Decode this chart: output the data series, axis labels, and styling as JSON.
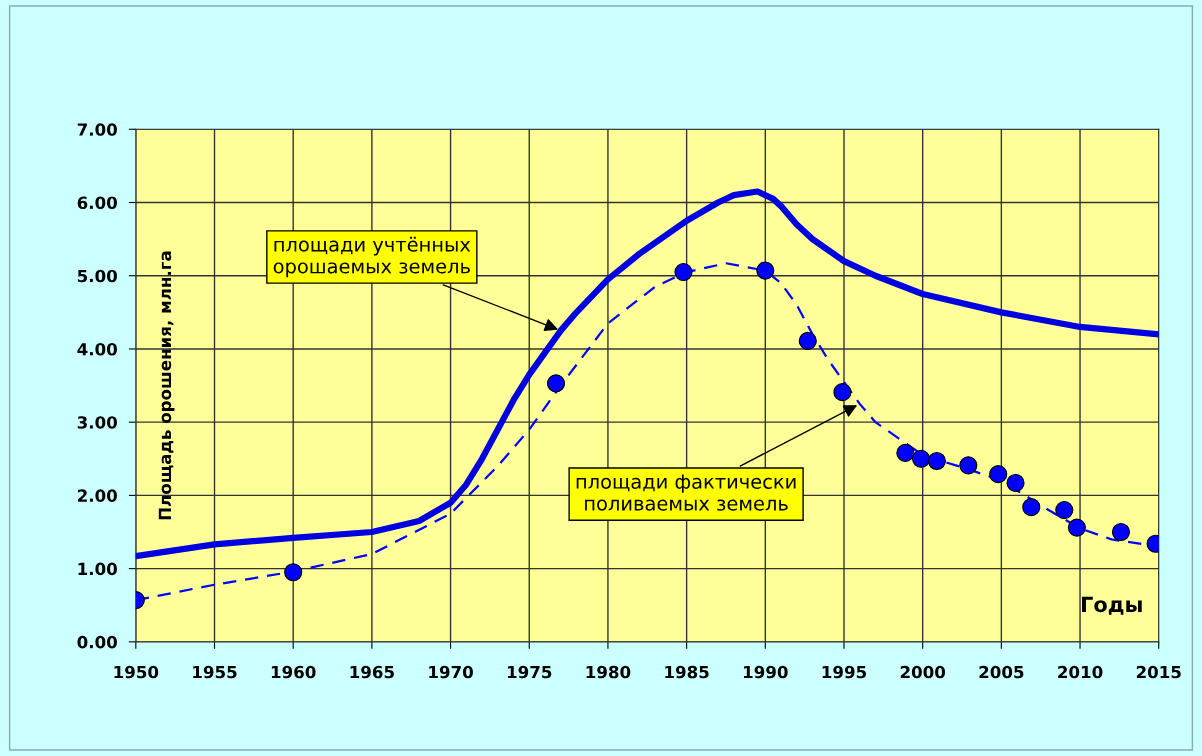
{
  "chart_data": {
    "type": "line",
    "xlabel": "Годы",
    "ylabel": "Площадь орошения, млн.га",
    "xlim": [
      1950,
      2015
    ],
    "xticks": [
      1950,
      1955,
      1960,
      1965,
      1970,
      1975,
      1980,
      1985,
      1990,
      1995,
      2000,
      2005,
      2010,
      2015
    ],
    "ylim": [
      0,
      7
    ],
    "yticks": [
      {
        "value": 0,
        "label": "0.00"
      },
      {
        "value": 1,
        "label": "1.00"
      },
      {
        "value": 2,
        "label": "2.00"
      },
      {
        "value": 3,
        "label": "3.00"
      },
      {
        "value": 4,
        "label": "4.00"
      },
      {
        "value": 5,
        "label": "5.00"
      },
      {
        "value": 6,
        "label": "6.00"
      },
      {
        "value": 7,
        "label": "7.00"
      }
    ],
    "grid": true,
    "legend": false,
    "series": [
      {
        "type": "line",
        "color": "#0000e0",
        "line_style": "solid",
        "marker": "none",
        "x": [
          1950,
          1955,
          1960,
          1965,
          1968,
          1970,
          1971,
          1972,
          1973,
          1974,
          1975,
          1976,
          1977,
          1978,
          1980,
          1982,
          1985,
          1987,
          1988,
          1989.5,
          1990.5,
          1991,
          1992,
          1993,
          1994,
          1995,
          1997,
          2000,
          2005,
          2010,
          2015
        ],
        "values": [
          1.17,
          1.33,
          1.42,
          1.5,
          1.65,
          1.9,
          2.15,
          2.5,
          2.9,
          3.3,
          3.65,
          3.95,
          4.25,
          4.5,
          4.95,
          5.3,
          5.75,
          6.0,
          6.1,
          6.15,
          6.05,
          5.95,
          5.7,
          5.5,
          5.35,
          5.2,
          5.0,
          4.75,
          4.5,
          4.3,
          4.2
        ]
      },
      {
        "type": "line",
        "color": "#0000ff",
        "line_style": "dashed",
        "marker": "none",
        "x": [
          1950,
          1955,
          1960,
          1965,
          1970,
          1973,
          1975,
          1977,
          1980,
          1983,
          1985,
          1987.5,
          1990,
          1991,
          1992,
          1993,
          1994,
          1995,
          1996,
          1997,
          2000,
          2003,
          2005,
          2008,
          2010,
          2012,
          2015
        ],
        "values": [
          0.57,
          0.78,
          0.96,
          1.2,
          1.75,
          2.4,
          2.9,
          3.5,
          4.35,
          4.85,
          5.05,
          5.17,
          5.07,
          4.9,
          4.6,
          4.2,
          3.85,
          3.55,
          3.25,
          3.0,
          2.55,
          2.35,
          2.2,
          1.8,
          1.55,
          1.4,
          1.3
        ]
      },
      {
        "type": "scatter",
        "color": "#0000ff",
        "marker": "circle",
        "x": [
          1950,
          1960,
          1976.7,
          1984.8,
          1990,
          1992.7,
          1994.9,
          1998.9,
          1999.9,
          2000.9,
          2002.9,
          2004.8,
          2005.9,
          2006.9,
          2009,
          2009.8,
          2012.6,
          2014.8
        ],
        "values": [
          0.57,
          0.95,
          3.53,
          5.05,
          5.07,
          4.11,
          3.41,
          2.58,
          2.5,
          2.47,
          2.41,
          2.29,
          2.17,
          1.84,
          1.8,
          1.56,
          1.5,
          1.34
        ]
      }
    ],
    "annotations": [
      {
        "text": "площади учтённых\nорошаемых земель",
        "x": 1977,
        "y": 4.25
      },
      {
        "text": "площади фактически\nполиваемых земель",
        "x": 1996,
        "y": 3.25
      }
    ]
  }
}
